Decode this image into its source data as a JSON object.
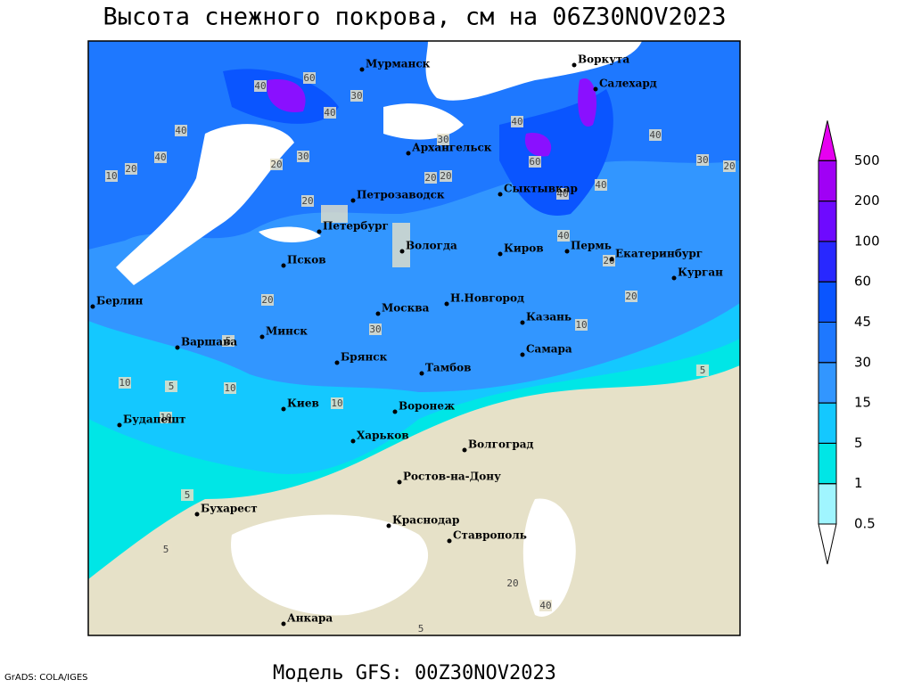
{
  "title": "Высота снежного покрова, см на 06Z30NOV2023",
  "footer": "Модель GFS: 00Z30NOV2023",
  "credit": "GrADS: COLA/IGES",
  "cities": [
    "Мурманск",
    "Воркута",
    "Салехард",
    "Архангельск",
    "Сыктывкар",
    "Петрозаводск",
    "Петербург",
    "Вологда",
    "Киров",
    "Пермь",
    "Екатеринбург",
    "Курган",
    "Псков",
    "Берлин",
    "Н.Новгород",
    "Москва",
    "Казань",
    "Минск",
    "Варшава",
    "Самара",
    "Брянск",
    "Тамбов",
    "Киев",
    "Воронеж",
    "Будапешт",
    "Харьков",
    "Волгоград",
    "Ростов-на-Дону",
    "Бухарест",
    "Краснодар",
    "Ставрополь",
    "Анкара"
  ],
  "contour_labels": [
    40,
    60,
    30,
    40,
    40,
    40,
    20,
    30,
    20,
    10,
    20,
    30,
    40,
    20,
    20,
    40,
    60,
    40,
    40,
    30,
    20,
    40,
    20,
    20,
    30,
    10,
    5,
    10,
    5,
    10,
    10,
    10,
    5,
    5,
    5,
    5,
    20,
    40,
    20
  ],
  "colorbar": {
    "levels": [
      0.5,
      1,
      5,
      15,
      30,
      45,
      60,
      100,
      200,
      500
    ],
    "colors": [
      "#ffffff",
      "#a0f5ff",
      "#00e6e6",
      "#14c8ff",
      "#3296ff",
      "#1e78ff",
      "#0a55ff",
      "#2828ff",
      "#6e0aff",
      "#a000f5",
      "#e600f0"
    ]
  }
}
